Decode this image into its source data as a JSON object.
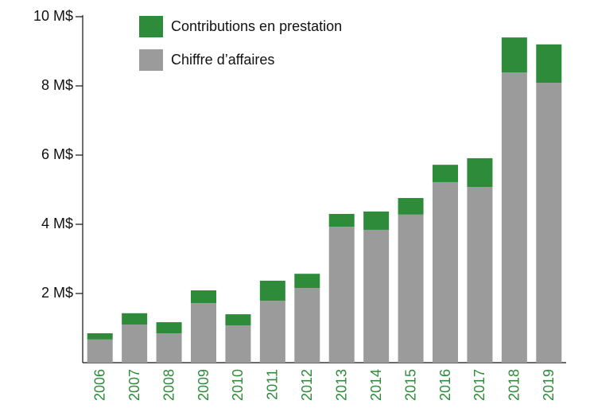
{
  "chart_data": {
    "type": "stacked_bar",
    "categories": [
      "2006",
      "2007",
      "2008",
      "2009",
      "2010",
      "2011",
      "2012",
      "2013",
      "2014",
      "2015",
      "2016",
      "2017",
      "2018",
      "2019"
    ],
    "series": [
      {
        "name": "Chiffre d’affaires",
        "color": "#9b9b9b",
        "values": [
          0.67,
          1.1,
          0.85,
          1.72,
          1.08,
          1.79,
          2.16,
          3.93,
          3.84,
          4.28,
          5.22,
          5.08,
          8.39,
          8.09
        ]
      },
      {
        "name": "Contributions en prestation",
        "color": "#2e8b3a",
        "values": [
          0.18,
          0.33,
          0.32,
          0.37,
          0.32,
          0.58,
          0.41,
          0.37,
          0.53,
          0.48,
          0.5,
          0.83,
          1.01,
          1.11
        ]
      }
    ],
    "ylim": [
      0,
      10
    ],
    "yticks": [
      {
        "value": 2,
        "label": "2 M$"
      },
      {
        "value": 4,
        "label": "4 M$"
      },
      {
        "value": 6,
        "label": "6 M$"
      },
      {
        "value": 8,
        "label": "8 M$"
      },
      {
        "value": 10,
        "label": "10 M$"
      }
    ],
    "category_label_color": "#2e8b3a"
  }
}
